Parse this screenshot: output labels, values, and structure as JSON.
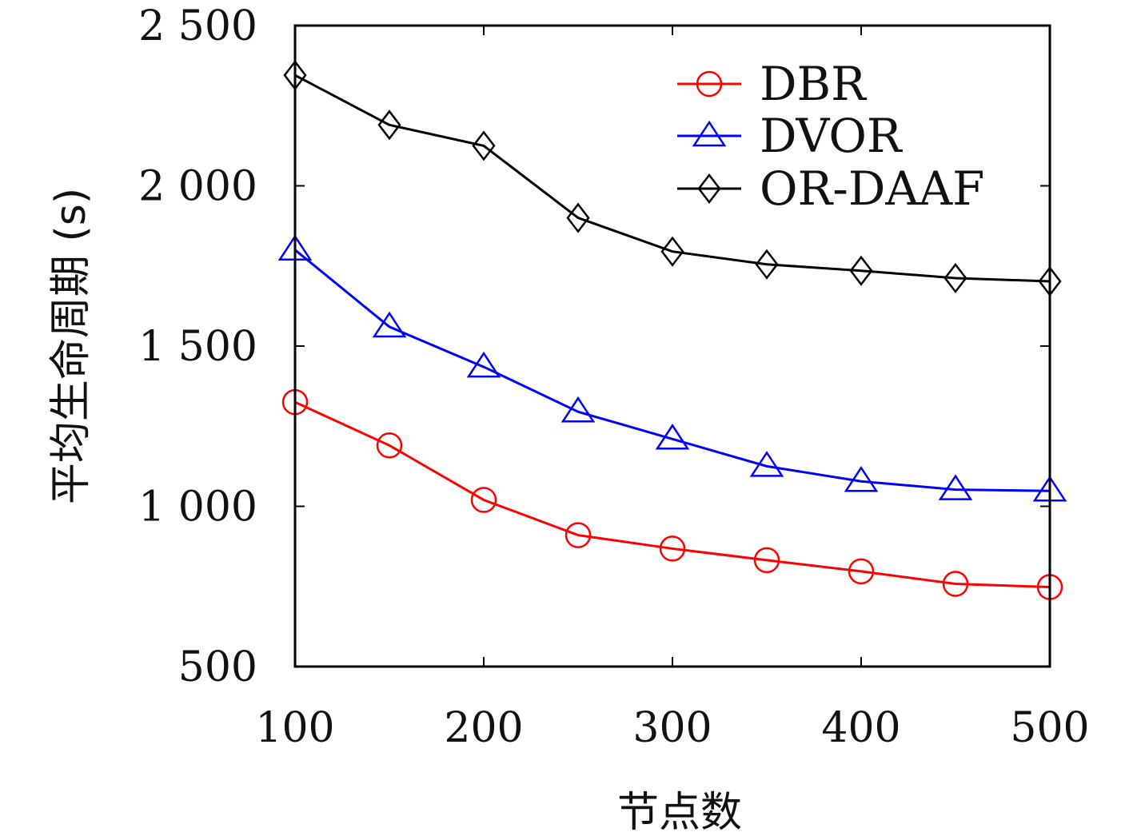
{
  "chart_data": {
    "type": "line",
    "title": "",
    "xlabel": "节点数",
    "ylabel": "平均生命周期 (s)",
    "x": [
      100,
      150,
      200,
      250,
      300,
      350,
      400,
      450,
      500
    ],
    "xlim": [
      100,
      500
    ],
    "ylim": [
      500,
      2500
    ],
    "xticks": [
      100,
      200,
      300,
      400,
      500
    ],
    "xtick_labels": [
      "100",
      "200",
      "300",
      "400",
      "500"
    ],
    "yticks": [
      500,
      1000,
      1500,
      2000,
      2500
    ],
    "ytick_labels": [
      "500",
      "1 000",
      "1 500",
      "2 000",
      "2 500"
    ],
    "grid": false,
    "legend_position": "top-right",
    "series": [
      {
        "name": "DBR",
        "color": "#ff0000",
        "marker": "circle",
        "values": [
          1325,
          1190,
          1020,
          910,
          868,
          832,
          797,
          758,
          748
        ]
      },
      {
        "name": "DVOR",
        "color": "#0000ff",
        "marker": "triangle",
        "values": [
          1800,
          1560,
          1435,
          1295,
          1210,
          1125,
          1078,
          1052,
          1048
        ]
      },
      {
        "name": "OR-DAAF",
        "color": "#000000",
        "marker": "diamond",
        "values": [
          2345,
          2190,
          2125,
          1900,
          1795,
          1755,
          1735,
          1712,
          1702
        ]
      }
    ]
  }
}
